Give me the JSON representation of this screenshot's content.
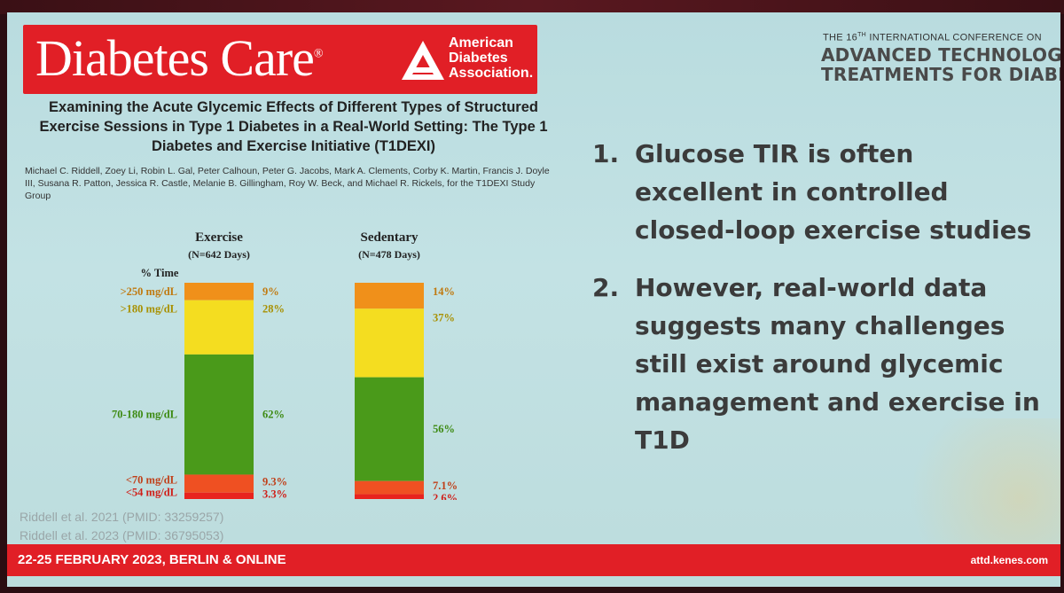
{
  "journal": {
    "name": "Diabetes Care",
    "trademark": "®",
    "association": [
      "American",
      "Diabetes",
      "Association."
    ]
  },
  "conference": {
    "line1_prefix": "THE 16",
    "line1_sup": "TH",
    "line1_suffix": " INTERNATIONAL CONFERENCE ON",
    "line2": "ADVANCED TECHNOLOGIES &",
    "line3": "TREATMENTS FOR DIABETES"
  },
  "paper": {
    "title": "Examining the Acute Glycemic Effects of Different Types of Structured Exercise Sessions in Type 1 Diabetes in a Real-World Setting: The Type 1 Diabetes and Exercise Initiative (T1DEXI)",
    "authors": "Michael C. Riddell, Zoey Li, Robin L. Gal, Peter Calhoun, Peter G. Jacobs, Mark A. Clements, Corby K. Martin, Francis J. Doyle III, Susana R. Patton, Jessica R. Castle, Melanie B. Gillingham, Roy W. Beck, and Michael R. Rickels, for the T1DEXI Study Group"
  },
  "chart_data": {
    "type": "bar",
    "stacked": true,
    "ylabel": "% Time",
    "categories": [
      "Exercise",
      "Sedentary"
    ],
    "category_subtitles": [
      "(N=642 Days)",
      "(N=478 Days)"
    ],
    "range_labels": [
      ">250 mg/dL",
      ">180 mg/dL",
      "70-180 mg/dL",
      "<70 mg/dL",
      "<54 mg/dL"
    ],
    "series": [
      {
        "name": ">250 mg/dL",
        "values": [
          9,
          14
        ],
        "labels": [
          "9%",
          "14%"
        ]
      },
      {
        "name": ">180 mg/dL",
        "values": [
          28,
          37
        ],
        "labels": [
          "28%",
          "37%"
        ]
      },
      {
        "name": "70-180 mg/dL",
        "values": [
          62,
          56
        ],
        "labels": [
          "62%",
          "56%"
        ]
      },
      {
        "name": "<70 mg/dL",
        "values": [
          9.3,
          7.1
        ],
        "labels": [
          "9.3%",
          "7.1%"
        ]
      },
      {
        "name": "<54 mg/dL",
        "values": [
          3.3,
          2.6
        ],
        "labels": [
          "3.3%",
          "2.6%"
        ]
      }
    ],
    "colors": [
      "#f0901a",
      "#f4dd20",
      "#4a9a1a",
      "#ef5022",
      "#e8231e"
    ],
    "label_colors": [
      "#c07a10",
      "#a89000",
      "#3d8a12",
      "#c0401a",
      "#d01e18"
    ]
  },
  "points": [
    {
      "num": "1.",
      "text": "Glucose TIR is often excellent in controlled closed-loop exercise studies"
    },
    {
      "num": "2.",
      "text": "However, real-world data suggests many challenges still exist around glycemic management and exercise in T1D"
    }
  ],
  "references": [
    "Riddell et al. 2021 (PMID: 33259257)",
    "Riddell et al. 2023 (PMID: 36795053)"
  ],
  "footer": {
    "left": "22-25 FEBRUARY 2023, BERLIN & ONLINE",
    "right": "attd.kenes.com"
  },
  "colors": {
    "brand_red": "#e11f26",
    "slide_bg": "#bddcde"
  }
}
